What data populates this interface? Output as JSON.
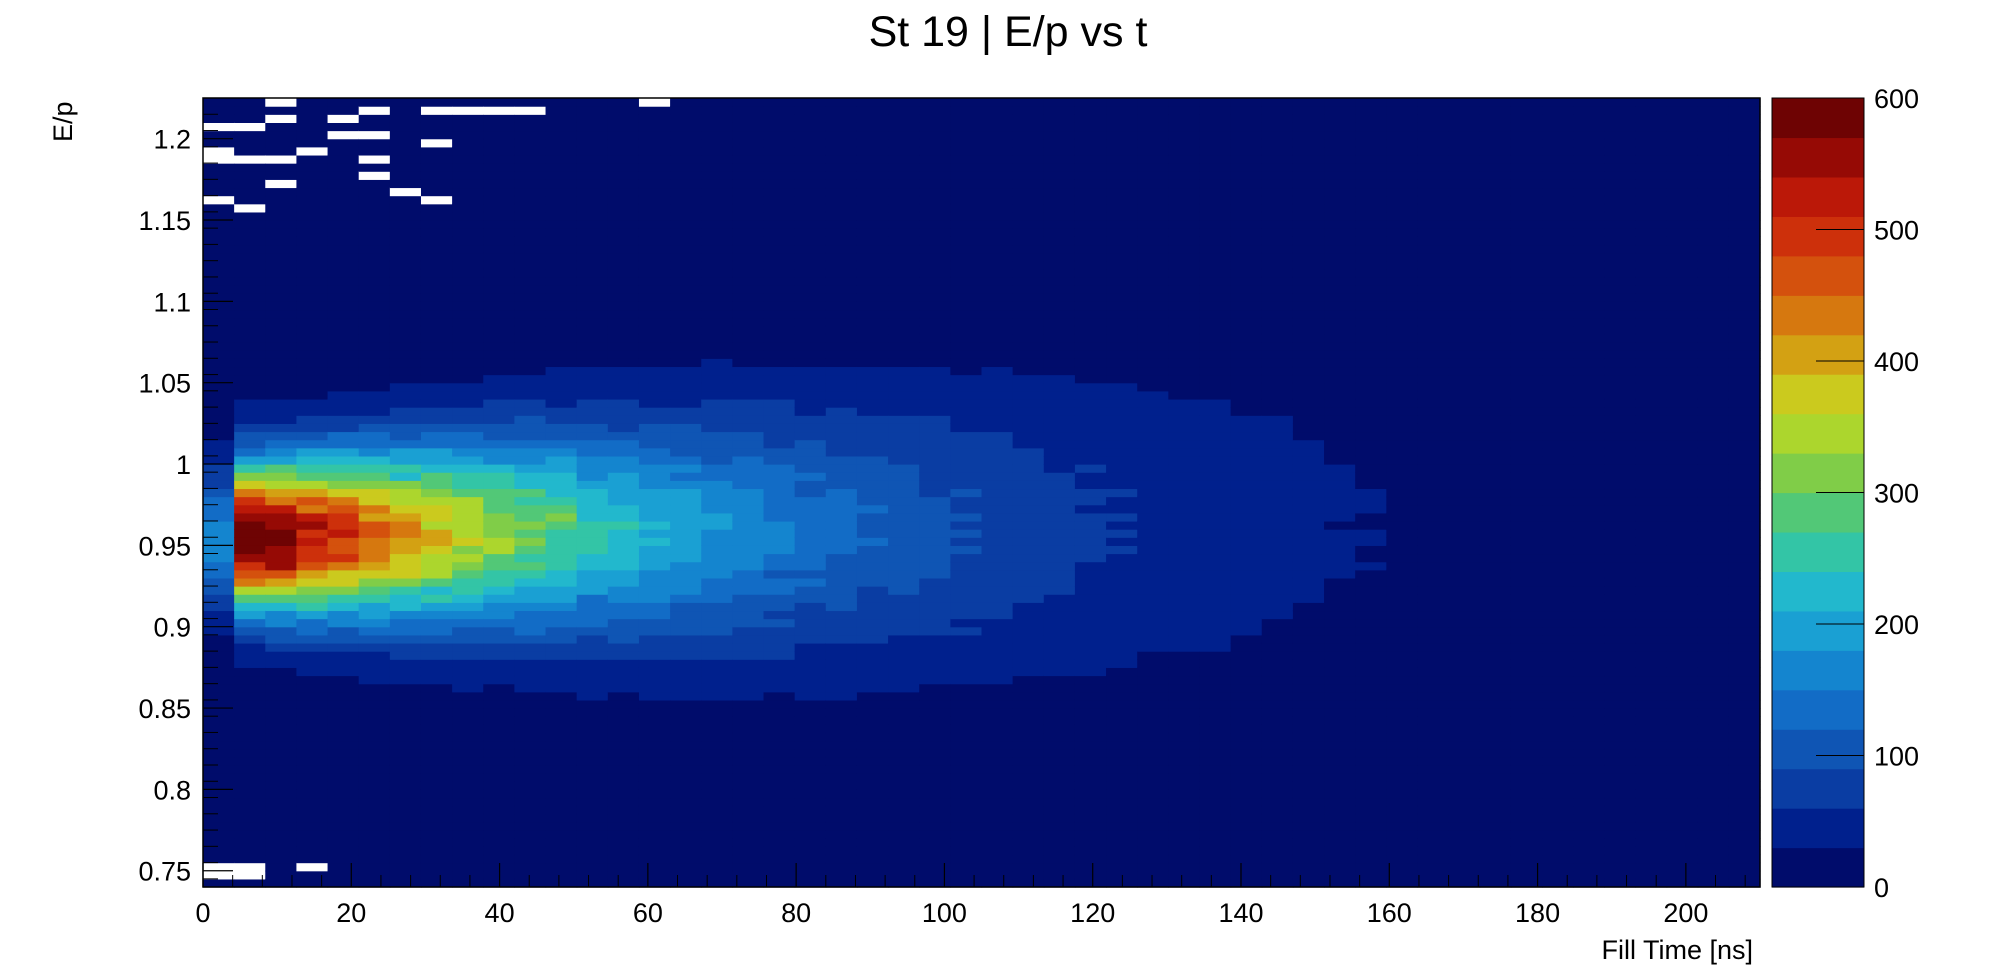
{
  "chart_data": {
    "type": "heatmap",
    "title": "St 19 | E/p vs t",
    "xlabel": "Fill Time [ns]",
    "ylabel": "E/p",
    "xlim": [
      0,
      210
    ],
    "ylim": [
      0.74,
      1.225
    ],
    "x_ticks": [
      "0",
      "20",
      "40",
      "60",
      "80",
      "100",
      "120",
      "140",
      "160",
      "180",
      "200"
    ],
    "y_ticks": [
      "0.75",
      "0.8",
      "0.85",
      "0.9",
      "0.95",
      "1",
      "1.05",
      "1.1",
      "1.15",
      "1.2"
    ],
    "zlim": [
      0,
      600
    ],
    "z_ticks": [
      "0",
      "100",
      "200",
      "300",
      "400",
      "500",
      "600"
    ],
    "x_bin_width": 4.2,
    "y_bin_width": 0.005,
    "peak": {
      "x": 8,
      "y": 0.955,
      "z": 600
    },
    "palette": [
      "#000c6b",
      "#00208d",
      "#0a3da3",
      "#0f55b4",
      "#126cc6",
      "#1485cf",
      "#1aa0d3",
      "#22b8cd",
      "#33c5a6",
      "#52c877",
      "#80cd48",
      "#acd62d",
      "#cbca1e",
      "#d3a113",
      "#d6780f",
      "#d4510d",
      "#cd300b",
      "#bb1808",
      "#960a05",
      "#6e0303"
    ],
    "empty_color": "#ffffff"
  }
}
